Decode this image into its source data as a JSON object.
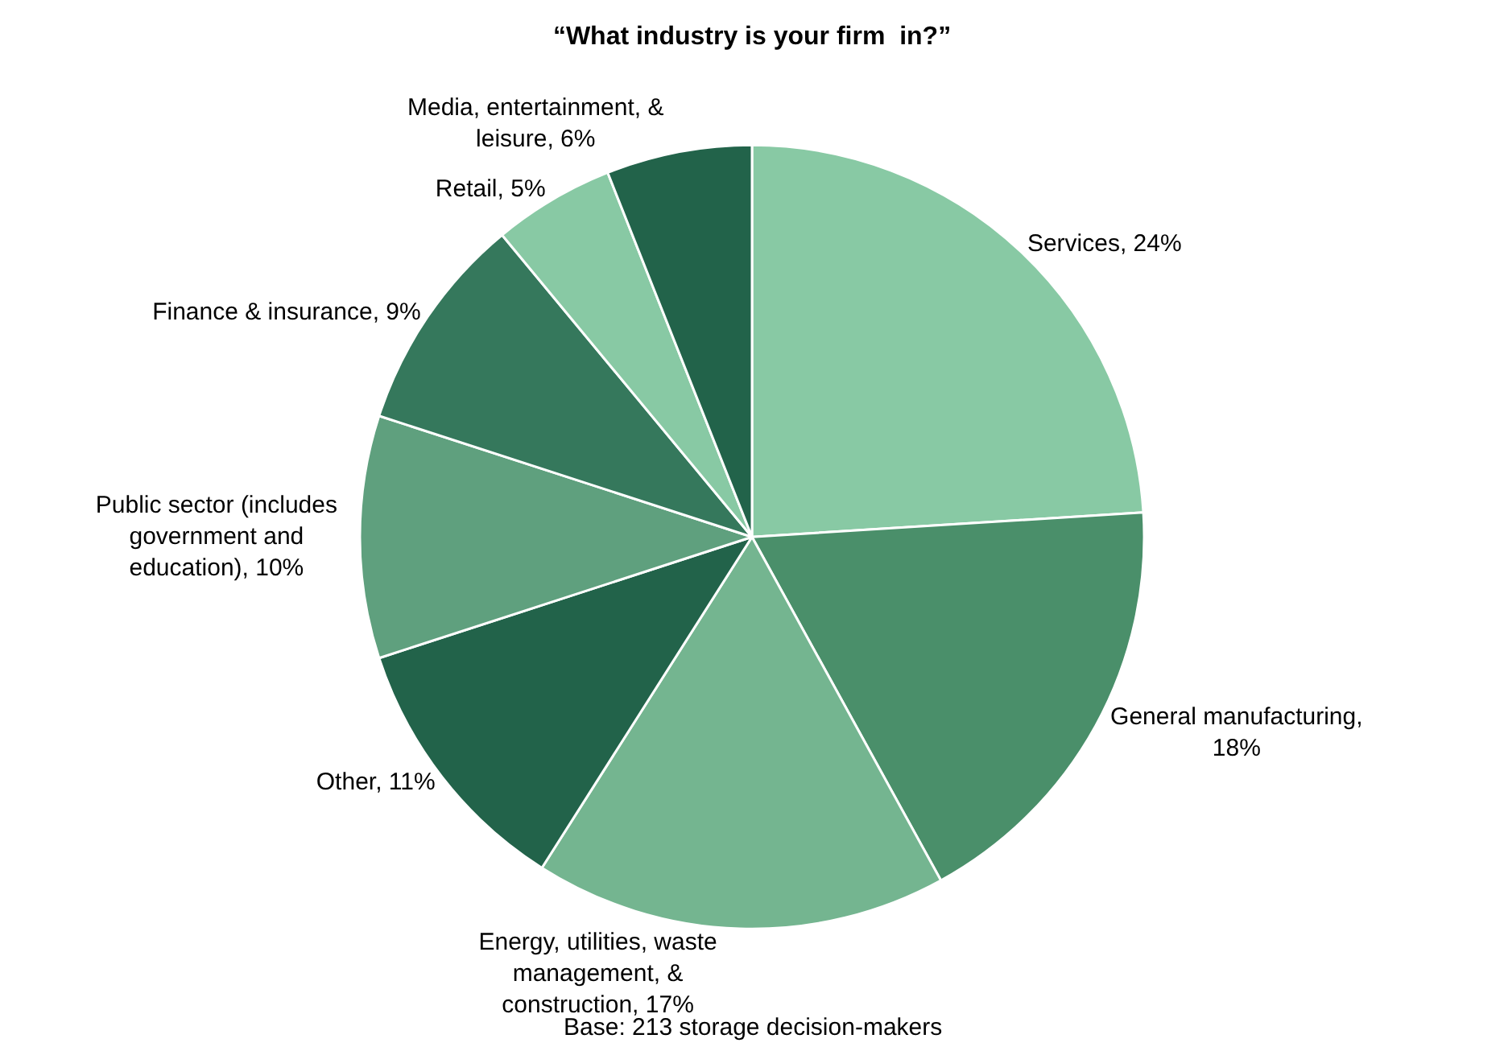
{
  "chart_data": {
    "type": "pie",
    "title": "“What industry is your firm  in?”",
    "categories": [
      "Services, 24%",
      "General manufacturing, 18%",
      "Energy, utilities, waste management, & construction, 17%",
      "Other, 11%",
      "Public sector (includes government and education), 10%",
      "Finance & insurance, 9%",
      "Retail, 5%",
      "Media, entertainment, & leisure, 6%"
    ],
    "values": [
      24,
      18,
      17,
      11,
      10,
      9,
      5,
      6
    ],
    "colors": [
      "#88c9a4",
      "#4a8f6a",
      "#74b590",
      "#22634a",
      "#5fa07e",
      "#35785c",
      "#88c9a4",
      "#22634a"
    ],
    "legend": false,
    "annotations": [
      "Base: 213 storage decision-makers"
    ]
  }
}
